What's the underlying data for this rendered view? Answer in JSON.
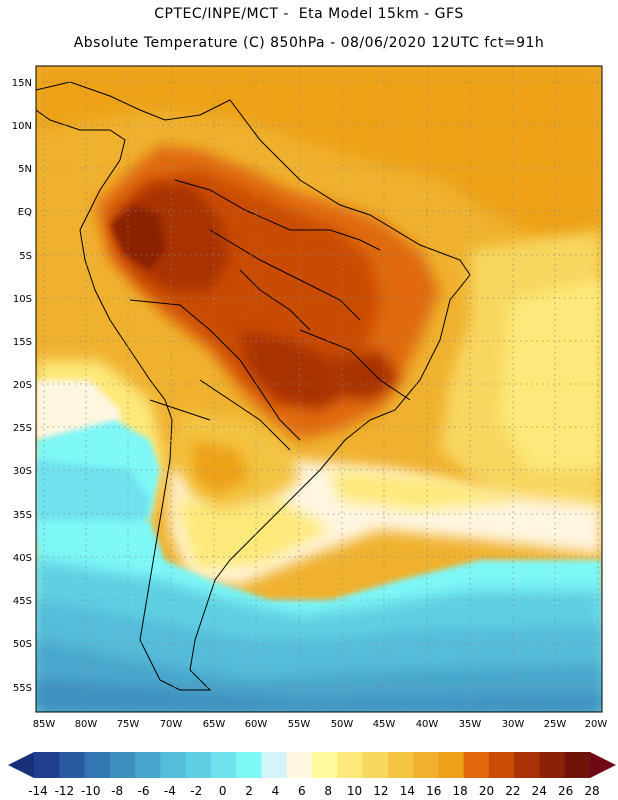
{
  "header": {
    "line1": "CPTEC/INPE/MCT -  Eta Model 15km - GFS",
    "line2": "Absolute Temperature (C) 850hPa - 08/06/2020 12UTC fct=91h"
  },
  "map": {
    "lat_labels": [
      "15N",
      "10N",
      "5N",
      "EQ",
      "5S",
      "10S",
      "15S",
      "20S",
      "25S",
      "30S",
      "35S",
      "40S",
      "45S",
      "50S",
      "55S"
    ],
    "lon_labels": [
      "85W",
      "80W",
      "75W",
      "70W",
      "65W",
      "60W",
      "55W",
      "50W",
      "45W",
      "40W",
      "35W",
      "30W",
      "25W",
      "20W"
    ],
    "lat_range": [
      17,
      -58
    ],
    "lon_range": [
      -86,
      -19
    ],
    "gridlines": "dotted"
  },
  "colorbar": {
    "labels": [
      "-14",
      "-12",
      "-10",
      "-8",
      "-6",
      "-4",
      "-2",
      "0",
      "2",
      "4",
      "6",
      "8",
      "10",
      "12",
      "14",
      "16",
      "18",
      "20",
      "22",
      "24",
      "26",
      "28"
    ],
    "colors": [
      "#1f3f8f",
      "#2a5aa0",
      "#3377b0",
      "#3d8fbf",
      "#48a6cc",
      "#55bcd9",
      "#5fcfe3",
      "#6fe3ee",
      "#7ef7f7",
      "#d4f4fb",
      "#fff6e0",
      "#fffa9e",
      "#fde97a",
      "#f8d75e",
      "#f3c443",
      "#f0b12f",
      "#eda118",
      "#e06a0a",
      "#c94b06",
      "#a83205",
      "#8a2006",
      "#6f1408"
    ],
    "end_low_color": "#1a2f7a",
    "end_high_color": "#6f0a14"
  }
}
